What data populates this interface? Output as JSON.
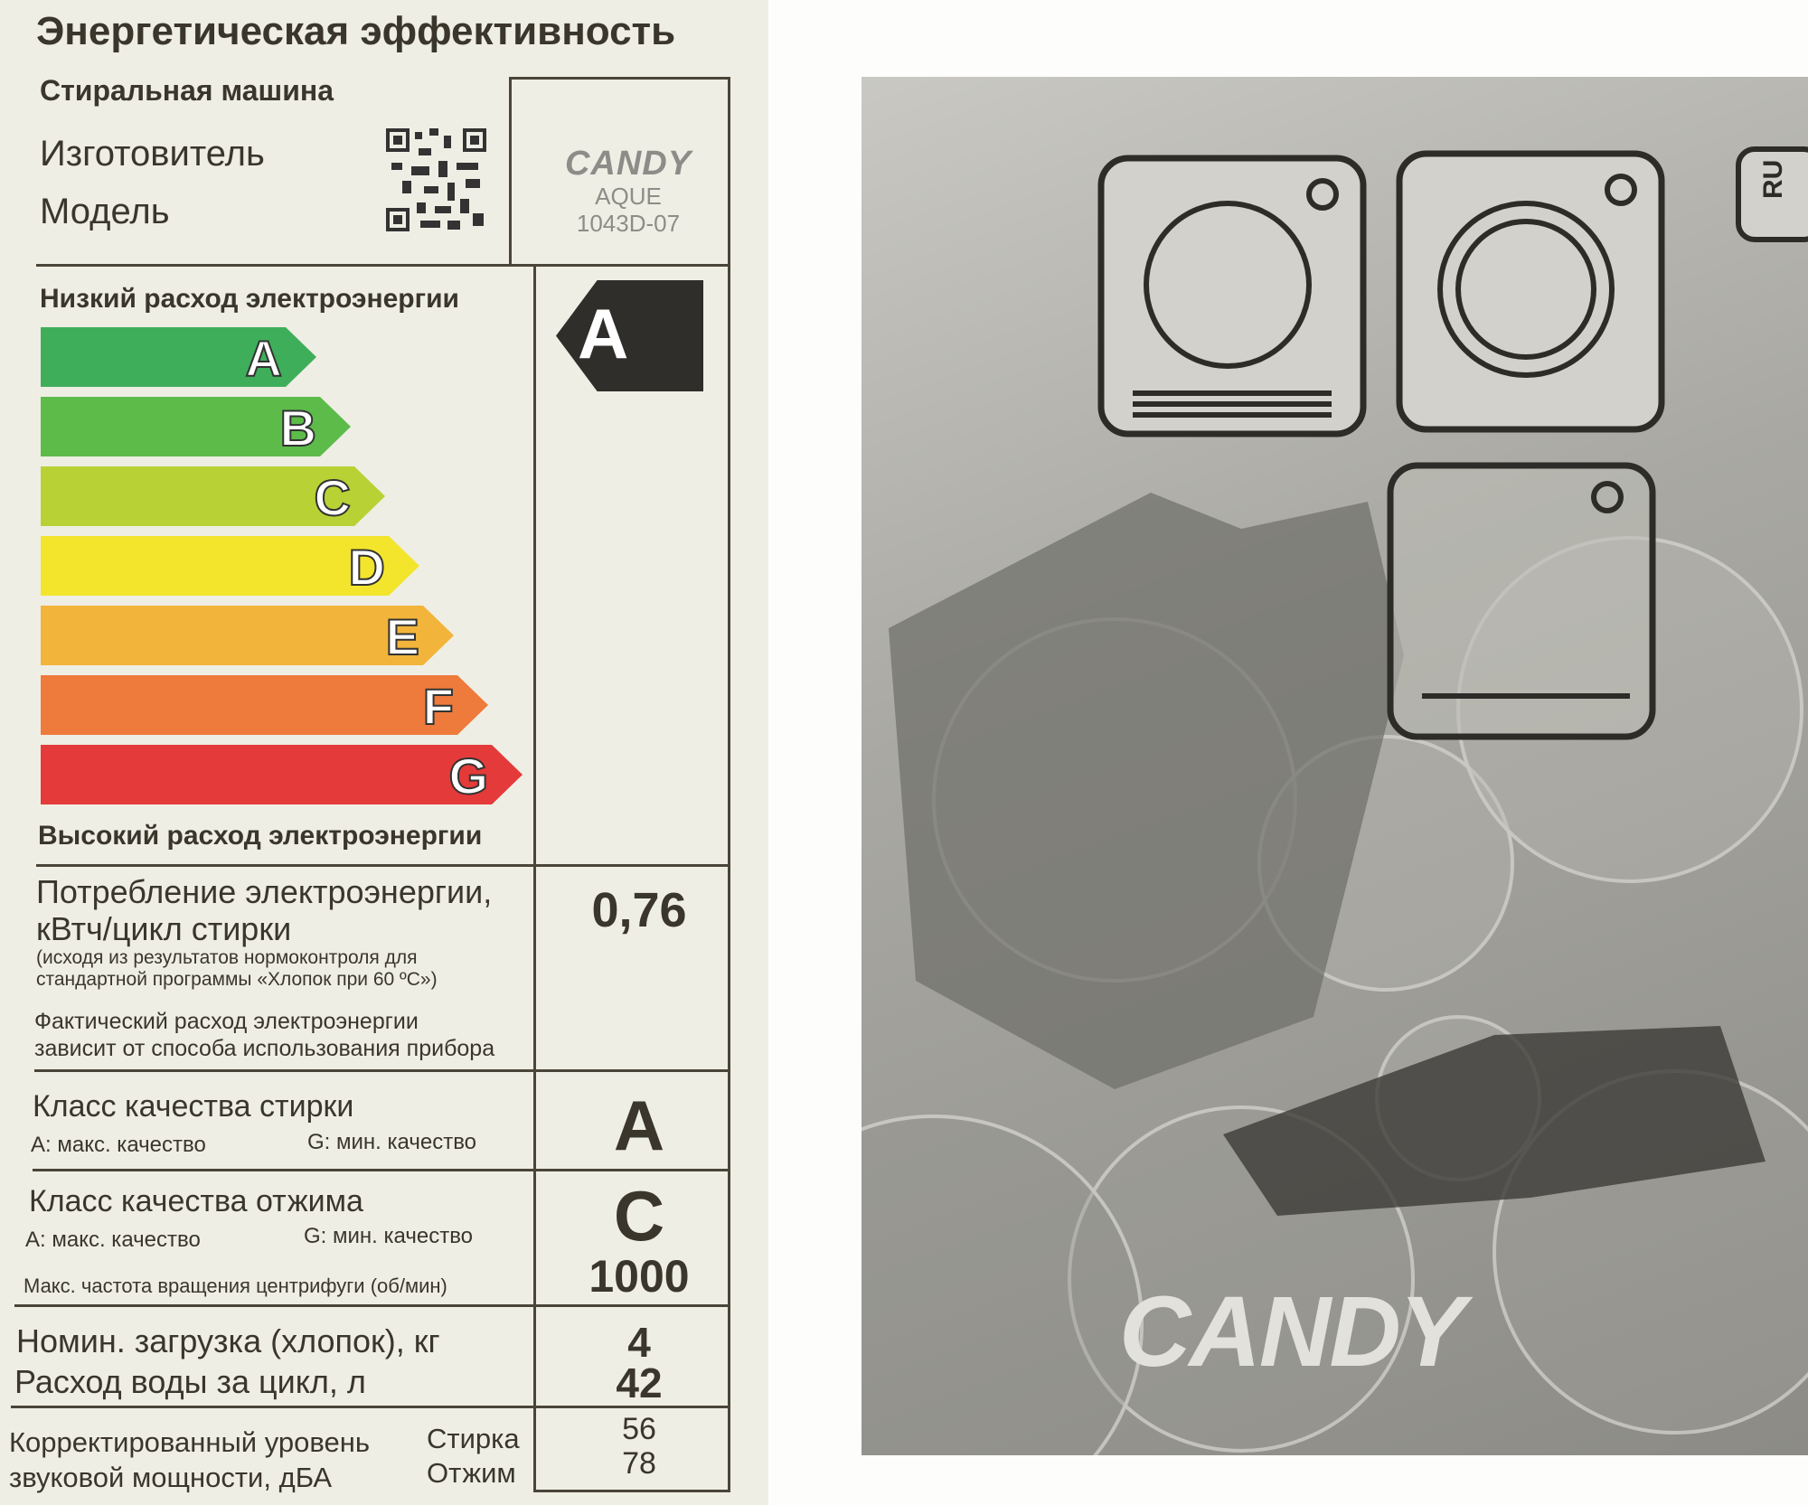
{
  "label": {
    "title": "Энергетическая эффективность",
    "appliance_type": "Стиральная машина",
    "manufacturer_label": "Изготовитель",
    "model_label": "Модель",
    "brand": "CANDY",
    "model_line1": "AQUE",
    "model_line2": "1043D-07",
    "low_consumption": "Низкий расход электроэнергии",
    "high_consumption": "Высокий расход электроэнергии",
    "scale": [
      {
        "letter": "A",
        "color": "#3fae5a"
      },
      {
        "letter": "B",
        "color": "#5dbb4a"
      },
      {
        "letter": "C",
        "color": "#b8d235"
      },
      {
        "letter": "D",
        "color": "#f2e52c"
      },
      {
        "letter": "E",
        "color": "#f2b43a"
      },
      {
        "letter": "F",
        "color": "#ee7a3c"
      },
      {
        "letter": "G",
        "color": "#e43a3a"
      }
    ],
    "energy_class": "A",
    "consumption": {
      "title_line1": "Потребление электроэнергии,",
      "title_line2": "кВтч/цикл стирки",
      "note_line1": "(исходя из результатов нормоконтроля для",
      "note_line2": "стандартной программы «Хлопок при 60 ºC»)",
      "actual_line1": "Фактический расход электроэнергии",
      "actual_line2": "зависит от способа использования прибора",
      "value": "0,76"
    },
    "wash_class": {
      "title": "Класс качества стирки",
      "max": "A: макс. качество",
      "min": "G: мин. качество",
      "value": "A"
    },
    "spin_class": {
      "title": "Класс качества отжима",
      "max": "A: макс. качество",
      "min": "G: мин. качество",
      "value": "C",
      "speed_label": "Макс. частота вращения центрифуги (об/мин)",
      "speed_value": "1000"
    },
    "load": {
      "label": "Номин. загрузка (хлопок), кг",
      "value": "4"
    },
    "water": {
      "label": "Расход воды за цикл, л",
      "value": "42"
    },
    "noise": {
      "line1": "Корректированный уровень",
      "line2": "звуковой мощности, дБА",
      "wash_label": "Стирка",
      "spin_label": "Отжим",
      "wash_value": "56",
      "spin_value": "78"
    }
  },
  "manual": {
    "language_tab": "RU",
    "brand": "CANDY"
  }
}
